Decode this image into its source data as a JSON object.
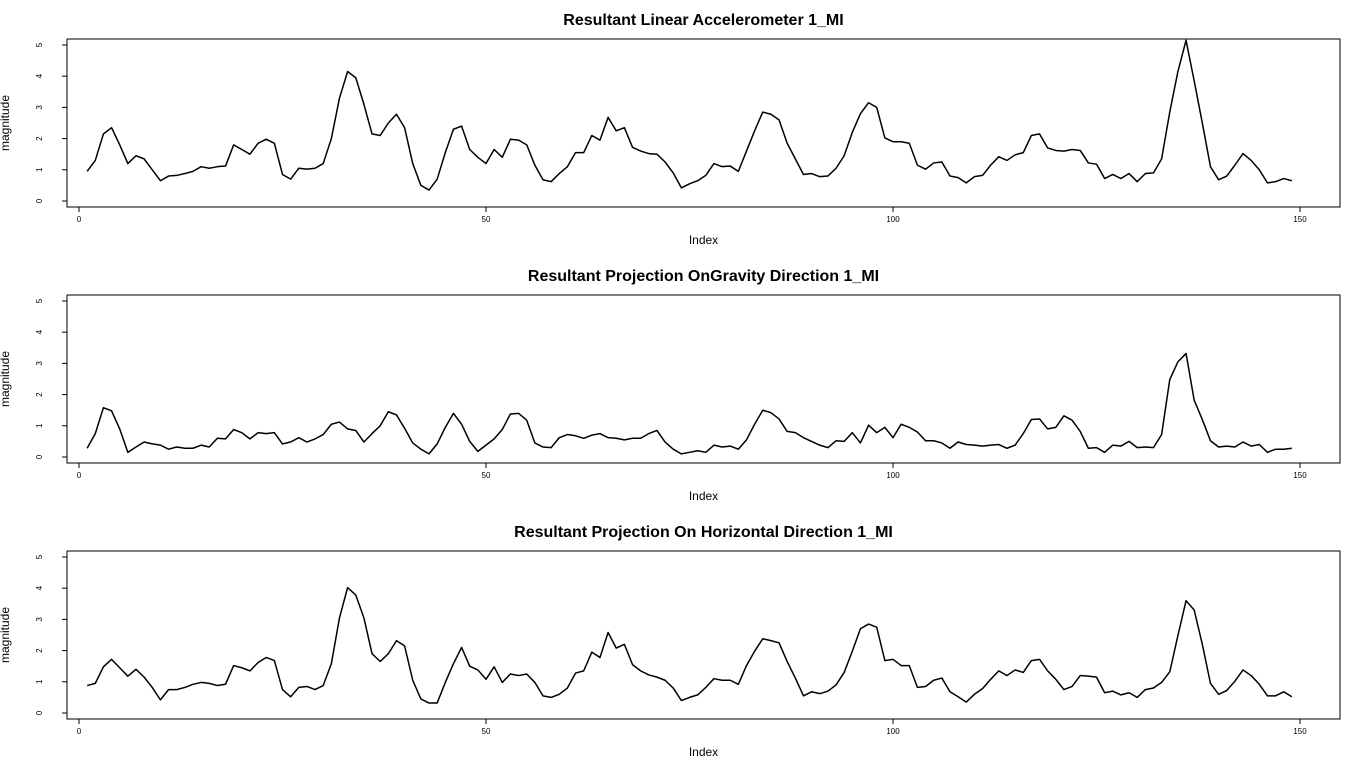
{
  "chart_data": [
    {
      "type": "line",
      "title": "Resultant Linear Accelerometer 1_MI",
      "xlabel": "Index",
      "ylabel": "magnitude",
      "xlim": [
        0,
        150
      ],
      "ylim": [
        0,
        5
      ],
      "xticks": [
        "0",
        "50",
        "100",
        "150"
      ],
      "yticks": [
        "0",
        "1",
        "2",
        "3",
        "4",
        "5"
      ],
      "grid": false,
      "series": [
        {
          "x": [
            1,
            2,
            3,
            4,
            5,
            6,
            7,
            8,
            9,
            10,
            11,
            12,
            13,
            14,
            15,
            16,
            17,
            18,
            19,
            20,
            21,
            22,
            23,
            24,
            25,
            26,
            27,
            28,
            29,
            30,
            31,
            32,
            33,
            34,
            35,
            36,
            37,
            38,
            39,
            40,
            41,
            42,
            43,
            44,
            45,
            46,
            47,
            48,
            49,
            50,
            51,
            52,
            53,
            54,
            55,
            56,
            57,
            58,
            59,
            60,
            61,
            62,
            63,
            64,
            65,
            66,
            67,
            68,
            69,
            70,
            71,
            72,
            73,
            74,
            75,
            76,
            77,
            78,
            79,
            80,
            81,
            82,
            83,
            84,
            85,
            86,
            87,
            88,
            89,
            90,
            91,
            92,
            93,
            94,
            95,
            96,
            97,
            98,
            99,
            100,
            101,
            102,
            103,
            104,
            105,
            106,
            107,
            108,
            109,
            110,
            111,
            112,
            113,
            114,
            115,
            116,
            117,
            118,
            119,
            120,
            121,
            122,
            123,
            124,
            125,
            126,
            127,
            128,
            129,
            130,
            131,
            132,
            133,
            134,
            135,
            136,
            137,
            138,
            139,
            140,
            141,
            142,
            143,
            144,
            145,
            146,
            147,
            148,
            149
          ],
          "values": [
            0.95,
            1.3,
            2.15,
            2.35,
            1.8,
            1.2,
            1.45,
            1.35,
            1.0,
            0.65,
            0.8,
            0.82,
            0.88,
            0.95,
            1.1,
            1.05,
            1.1,
            1.12,
            1.8,
            1.65,
            1.5,
            1.85,
            1.98,
            1.85,
            0.85,
            0.7,
            1.05,
            1.02,
            1.05,
            1.2,
            2.0,
            3.3,
            4.15,
            3.95,
            3.1,
            2.15,
            2.1,
            2.5,
            2.78,
            2.35,
            1.2,
            0.5,
            0.35,
            0.7,
            1.55,
            2.3,
            2.4,
            1.65,
            1.4,
            1.2,
            1.65,
            1.4,
            1.98,
            1.95,
            1.8,
            1.15,
            0.68,
            0.62,
            0.88,
            1.1,
            1.55,
            1.55,
            2.1,
            1.95,
            2.68,
            2.25,
            2.35,
            1.72,
            1.6,
            1.52,
            1.5,
            1.25,
            0.9,
            0.42,
            0.55,
            0.65,
            0.82,
            1.2,
            1.1,
            1.12,
            0.95,
            1.6,
            2.25,
            2.85,
            2.78,
            2.6,
            1.85,
            1.35,
            0.85,
            0.88,
            0.78,
            0.8,
            1.05,
            1.45,
            2.2,
            2.8,
            3.15,
            3.0,
            2.02,
            1.9,
            1.9,
            1.85,
            1.15,
            1.02,
            1.22,
            1.25,
            0.8,
            0.75,
            0.58,
            0.78,
            0.82,
            1.15,
            1.42,
            1.3,
            1.48,
            1.55,
            2.1,
            2.15,
            1.7,
            1.62,
            1.6,
            1.65,
            1.62,
            1.22,
            1.18,
            0.72,
            0.85,
            0.72,
            0.88,
            0.62,
            0.88,
            0.9,
            1.35,
            2.85,
            4.15,
            5.15,
            3.85,
            2.5,
            1.1,
            0.68,
            0.8,
            1.15,
            1.52,
            1.3,
            1.0,
            0.58,
            0.62,
            0.72,
            0.65
          ]
        }
      ]
    },
    {
      "type": "line",
      "title": "Resultant Projection OnGravity Direction 1_MI",
      "xlabel": "Index",
      "ylabel": "magnitude",
      "xlim": [
        0,
        150
      ],
      "ylim": [
        0,
        5
      ],
      "xticks": [
        "0",
        "50",
        "100",
        "150"
      ],
      "yticks": [
        "0",
        "1",
        "2",
        "3",
        "4",
        "5"
      ],
      "grid": false,
      "series": [
        {
          "x": [
            1,
            2,
            3,
            4,
            5,
            6,
            7,
            8,
            9,
            10,
            11,
            12,
            13,
            14,
            15,
            16,
            17,
            18,
            19,
            20,
            21,
            22,
            23,
            24,
            25,
            26,
            27,
            28,
            29,
            30,
            31,
            32,
            33,
            34,
            35,
            36,
            37,
            38,
            39,
            40,
            41,
            42,
            43,
            44,
            45,
            46,
            47,
            48,
            49,
            50,
            51,
            52,
            53,
            54,
            55,
            56,
            57,
            58,
            59,
            60,
            61,
            62,
            63,
            64,
            65,
            66,
            67,
            68,
            69,
            70,
            71,
            72,
            73,
            74,
            75,
            76,
            77,
            78,
            79,
            80,
            81,
            82,
            83,
            84,
            85,
            86,
            87,
            88,
            89,
            90,
            91,
            92,
            93,
            94,
            95,
            96,
            97,
            98,
            99,
            100,
            101,
            102,
            103,
            104,
            105,
            106,
            107,
            108,
            109,
            110,
            111,
            112,
            113,
            114,
            115,
            116,
            117,
            118,
            119,
            120,
            121,
            122,
            123,
            124,
            125,
            126,
            127,
            128,
            129,
            130,
            131,
            132,
            133,
            134,
            135,
            136,
            137,
            138,
            139,
            140,
            141,
            142,
            143,
            144,
            145,
            146,
            147,
            148,
            149
          ],
          "values": [
            0.28,
            0.75,
            1.58,
            1.48,
            0.9,
            0.15,
            0.32,
            0.48,
            0.42,
            0.38,
            0.25,
            0.32,
            0.28,
            0.28,
            0.38,
            0.32,
            0.6,
            0.58,
            0.88,
            0.78,
            0.58,
            0.78,
            0.75,
            0.78,
            0.42,
            0.48,
            0.62,
            0.48,
            0.58,
            0.72,
            1.05,
            1.12,
            0.9,
            0.85,
            0.48,
            0.75,
            1.0,
            1.45,
            1.35,
            0.92,
            0.45,
            0.25,
            0.1,
            0.42,
            0.95,
            1.4,
            1.05,
            0.5,
            0.18,
            0.38,
            0.58,
            0.88,
            1.38,
            1.4,
            1.18,
            0.45,
            0.32,
            0.3,
            0.62,
            0.72,
            0.68,
            0.6,
            0.7,
            0.75,
            0.62,
            0.6,
            0.55,
            0.6,
            0.6,
            0.75,
            0.85,
            0.48,
            0.25,
            0.1,
            0.15,
            0.2,
            0.15,
            0.38,
            0.32,
            0.35,
            0.25,
            0.55,
            1.05,
            1.5,
            1.42,
            1.22,
            0.82,
            0.78,
            0.62,
            0.5,
            0.38,
            0.3,
            0.52,
            0.5,
            0.78,
            0.45,
            1.02,
            0.78,
            0.95,
            0.62,
            1.05,
            0.95,
            0.8,
            0.52,
            0.52,
            0.45,
            0.28,
            0.48,
            0.4,
            0.38,
            0.35,
            0.38,
            0.4,
            0.28,
            0.38,
            0.75,
            1.2,
            1.22,
            0.9,
            0.95,
            1.32,
            1.18,
            0.82,
            0.28,
            0.3,
            0.15,
            0.38,
            0.35,
            0.5,
            0.3,
            0.32,
            0.3,
            0.72,
            2.48,
            3.05,
            3.32,
            1.82,
            1.2,
            0.52,
            0.32,
            0.35,
            0.32,
            0.48,
            0.35,
            0.4,
            0.15,
            0.25,
            0.25,
            0.28
          ]
        }
      ]
    },
    {
      "type": "line",
      "title": "Resultant Projection On Horizontal Direction 1_MI",
      "xlabel": "Index",
      "ylabel": "magnitude",
      "xlim": [
        0,
        150
      ],
      "ylim": [
        0,
        5
      ],
      "xticks": [
        "0",
        "50",
        "100",
        "150"
      ],
      "yticks": [
        "0",
        "1",
        "2",
        "3",
        "4",
        "5"
      ],
      "grid": false,
      "series": [
        {
          "x": [
            1,
            2,
            3,
            4,
            5,
            6,
            7,
            8,
            9,
            10,
            11,
            12,
            13,
            14,
            15,
            16,
            17,
            18,
            19,
            20,
            21,
            22,
            23,
            24,
            25,
            26,
            27,
            28,
            29,
            30,
            31,
            32,
            33,
            34,
            35,
            36,
            37,
            38,
            39,
            40,
            41,
            42,
            43,
            44,
            45,
            46,
            47,
            48,
            49,
            50,
            51,
            52,
            53,
            54,
            55,
            56,
            57,
            58,
            59,
            60,
            61,
            62,
            63,
            64,
            65,
            66,
            67,
            68,
            69,
            70,
            71,
            72,
            73,
            74,
            75,
            76,
            77,
            78,
            79,
            80,
            81,
            82,
            83,
            84,
            85,
            86,
            87,
            88,
            89,
            90,
            91,
            92,
            93,
            94,
            95,
            96,
            97,
            98,
            99,
            100,
            101,
            102,
            103,
            104,
            105,
            106,
            107,
            108,
            109,
            110,
            111,
            112,
            113,
            114,
            115,
            116,
            117,
            118,
            119,
            120,
            121,
            122,
            123,
            124,
            125,
            126,
            127,
            128,
            129,
            130,
            131,
            132,
            133,
            134,
            135,
            136,
            137,
            138,
            139,
            140,
            141,
            142,
            143,
            144,
            145,
            146,
            147,
            148,
            149
          ],
          "values": [
            0.88,
            0.95,
            1.48,
            1.72,
            1.45,
            1.18,
            1.4,
            1.15,
            0.82,
            0.42,
            0.75,
            0.75,
            0.82,
            0.92,
            0.98,
            0.95,
            0.88,
            0.92,
            1.52,
            1.45,
            1.35,
            1.62,
            1.78,
            1.68,
            0.75,
            0.52,
            0.82,
            0.85,
            0.75,
            0.88,
            1.58,
            3.05,
            4.02,
            3.78,
            3.05,
            1.9,
            1.65,
            1.9,
            2.32,
            2.15,
            1.05,
            0.45,
            0.32,
            0.32,
            0.98,
            1.58,
            2.1,
            1.5,
            1.38,
            1.08,
            1.48,
            0.98,
            1.25,
            1.2,
            1.25,
            0.98,
            0.55,
            0.5,
            0.6,
            0.8,
            1.28,
            1.35,
            1.95,
            1.78,
            2.58,
            2.08,
            2.2,
            1.55,
            1.35,
            1.22,
            1.15,
            1.05,
            0.8,
            0.4,
            0.5,
            0.58,
            0.82,
            1.1,
            1.05,
            1.05,
            0.92,
            1.52,
            1.98,
            2.38,
            2.32,
            2.25,
            1.65,
            1.12,
            0.55,
            0.68,
            0.62,
            0.7,
            0.9,
            1.3,
            1.98,
            2.7,
            2.85,
            2.75,
            1.68,
            1.72,
            1.52,
            1.52,
            0.82,
            0.85,
            1.05,
            1.12,
            0.68,
            0.52,
            0.35,
            0.6,
            0.78,
            1.08,
            1.35,
            1.2,
            1.38,
            1.3,
            1.68,
            1.72,
            1.35,
            1.08,
            0.75,
            0.85,
            1.2,
            1.18,
            1.15,
            0.65,
            0.7,
            0.58,
            0.65,
            0.5,
            0.75,
            0.8,
            0.98,
            1.32,
            2.48,
            3.6,
            3.3,
            2.2,
            0.95,
            0.6,
            0.72,
            1.02,
            1.38,
            1.2,
            0.92,
            0.55,
            0.55,
            0.68,
            0.52
          ]
        }
      ]
    }
  ]
}
